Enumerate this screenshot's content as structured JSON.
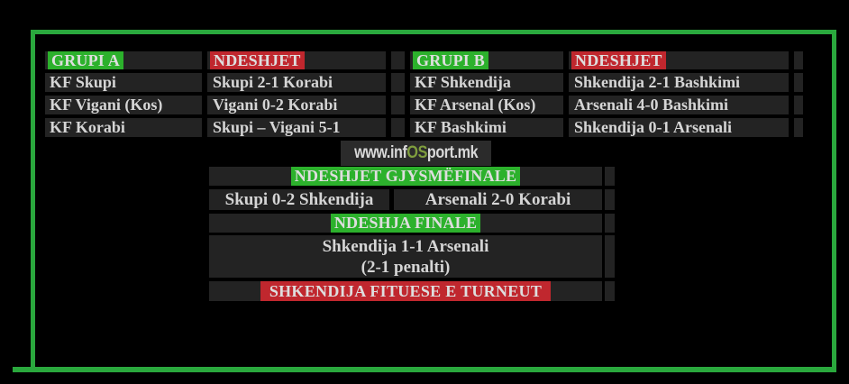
{
  "colors": {
    "background": "#000000",
    "frame_green": "#2aa83d",
    "highlight_green": "#2cb12c",
    "highlight_red": "#c0272e",
    "cell_background": "#232323",
    "text": "#d5d5d5",
    "watermark_os_green": "#7f9e3e"
  },
  "watermark": {
    "prefix": "www.inf",
    "highlight": "OS",
    "suffix": "port.mk"
  },
  "groups": [
    {
      "title": "GRUPI A",
      "matches_header": "NDESHJET",
      "rows": [
        {
          "team": "KF Skupi",
          "match": "Skupi 2-1 Korabi"
        },
        {
          "team": "KF Vigani (Kos)",
          "match": "Vigani 0-2 Korabi"
        },
        {
          "team": "KF Korabi",
          "match": "Skupi – Vigani 5-1"
        }
      ]
    },
    {
      "title": "GRUPI B",
      "matches_header": "NDESHJET",
      "rows": [
        {
          "team": "KF Shkendija",
          "match": "Shkendija 2-1 Bashkimi"
        },
        {
          "team": "KF Arsenal (Kos)",
          "match": "Arsenali 4-0 Bashkimi"
        },
        {
          "team": "KF Bashkimi",
          "match": "Shkendija 0-1 Arsenali"
        }
      ]
    }
  ],
  "knockout": {
    "semifinal_header": "NDESHJET GJYSMËFINALE",
    "semifinals": [
      "Skupi 0-2 Shkendija",
      "Arsenali 2-0 Korabi"
    ],
    "final_header": "NDESHJA FINALE",
    "final_score": "Shkendija 1-1 Arsenali",
    "final_penalties": "(2-1 penalti)",
    "winner": "SHKENDIJA FITUESE E TURNEUT"
  }
}
